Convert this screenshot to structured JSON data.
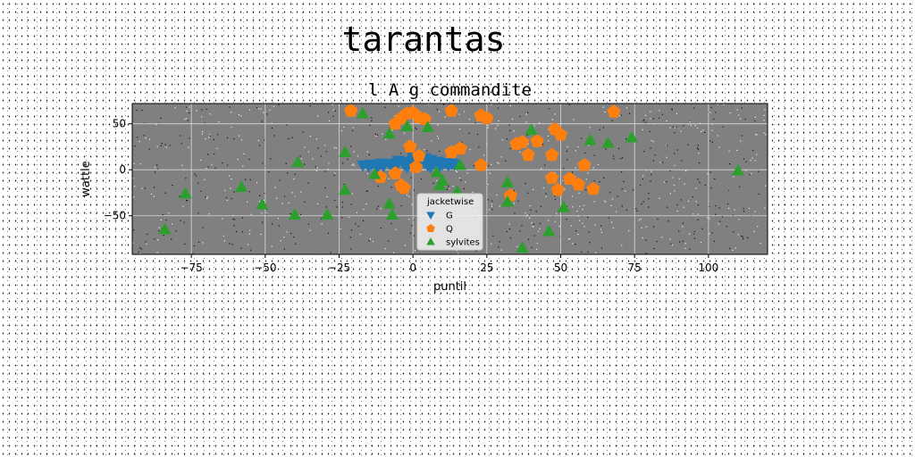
{
  "page": {
    "suptitle": "tarantas"
  },
  "chart_data": {
    "type": "scatter",
    "title": "l A g commandite",
    "xlabel": "puntil",
    "ylabel": "wattle",
    "xlim": [
      -95,
      120
    ],
    "ylim": [
      -92,
      72
    ],
    "xticks": [
      -75,
      -50,
      -25,
      0,
      25,
      50,
      75,
      100
    ],
    "yticks": [
      -50,
      0,
      50
    ],
    "grid": true,
    "facecolor": "#808080",
    "legend": {
      "title": "jacketwise",
      "location": "lower-center"
    },
    "series": [
      {
        "name": "G",
        "marker": "triangle-down",
        "color": "#1f77b4",
        "points": [
          [
            -17,
            5
          ],
          [
            -14,
            6
          ],
          [
            -11,
            7
          ],
          [
            -8,
            7
          ],
          [
            -5,
            8
          ],
          [
            -2,
            9
          ],
          [
            0,
            11
          ],
          [
            3,
            12
          ],
          [
            6,
            11
          ],
          [
            8,
            9
          ],
          [
            11,
            8
          ],
          [
            13,
            7
          ],
          [
            -15,
            4
          ],
          [
            -10,
            4
          ],
          [
            -6,
            5
          ],
          [
            -3,
            6
          ],
          [
            1,
            7
          ],
          [
            4,
            8
          ],
          [
            7,
            7
          ],
          [
            10,
            6
          ],
          [
            12,
            5
          ],
          [
            -12,
            3
          ],
          [
            -7,
            3
          ],
          [
            -2,
            3
          ],
          [
            2,
            4
          ],
          [
            5,
            5
          ],
          [
            9,
            4
          ],
          [
            0,
            14
          ],
          [
            4,
            13
          ],
          [
            -5,
            10
          ],
          [
            14,
            6
          ],
          [
            6,
            3
          ]
        ]
      },
      {
        "name": "Q",
        "marker": "pentagon",
        "color": "#ff7f0e",
        "points": [
          [
            -21,
            64
          ],
          [
            -6,
            50
          ],
          [
            -4,
            56
          ],
          [
            -2,
            61
          ],
          [
            0,
            62
          ],
          [
            2,
            57
          ],
          [
            4,
            55
          ],
          [
            13,
            64
          ],
          [
            23,
            59
          ],
          [
            25,
            56
          ],
          [
            -1,
            25
          ],
          [
            2,
            15
          ],
          [
            1,
            3
          ],
          [
            -6,
            -4
          ],
          [
            -4,
            -17
          ],
          [
            -3,
            -20
          ],
          [
            -11,
            -8
          ],
          [
            13,
            19
          ],
          [
            16,
            23
          ],
          [
            23,
            5
          ],
          [
            35,
            28
          ],
          [
            37,
            30
          ],
          [
            39,
            16
          ],
          [
            42,
            31
          ],
          [
            47,
            16
          ],
          [
            48,
            44
          ],
          [
            50,
            38
          ],
          [
            47,
            -9
          ],
          [
            49,
            -22
          ],
          [
            53,
            -10
          ],
          [
            56,
            -16
          ],
          [
            58,
            5
          ],
          [
            61,
            -21
          ],
          [
            68,
            63
          ],
          [
            33,
            -28
          ]
        ]
      },
      {
        "name": "sylvites",
        "marker": "triangle-up",
        "color": "#2ca02c",
        "points": [
          [
            -84,
            -65
          ],
          [
            -77,
            -26
          ],
          [
            -58,
            -19
          ],
          [
            -51,
            -38
          ],
          [
            -40,
            -49
          ],
          [
            -39,
            8
          ],
          [
            -29,
            -49
          ],
          [
            -23,
            19
          ],
          [
            -23,
            -22
          ],
          [
            -17,
            61
          ],
          [
            -13,
            -5
          ],
          [
            -8,
            -37
          ],
          [
            -8,
            39
          ],
          [
            -7,
            -49
          ],
          [
            -2,
            47
          ],
          [
            5,
            46
          ],
          [
            8,
            -3
          ],
          [
            9,
            -17
          ],
          [
            10,
            -12
          ],
          [
            15,
            -24
          ],
          [
            16,
            5
          ],
          [
            32,
            -14
          ],
          [
            32,
            -35
          ],
          [
            37,
            -85
          ],
          [
            40,
            43
          ],
          [
            46,
            -67
          ],
          [
            51,
            -41
          ],
          [
            60,
            32
          ],
          [
            66,
            29
          ],
          [
            74,
            35
          ],
          [
            110,
            -1
          ]
        ]
      }
    ]
  }
}
